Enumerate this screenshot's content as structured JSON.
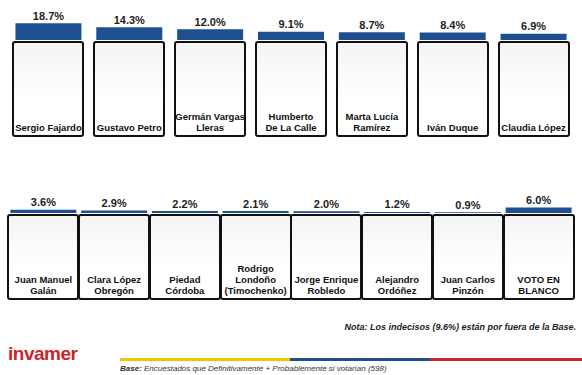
{
  "chart_data": [
    {
      "type": "bar",
      "categories": [
        "Sergio Fajardo",
        "Gustavo Petro",
        "Germán Vargas\nLleras",
        "Humberto\nDe La Calle",
        "Marta Lucía\nRamírez",
        "Iván Duque",
        "Claudia López"
      ],
      "values": [
        18.7,
        14.3,
        12.0,
        9.1,
        8.7,
        8.4,
        6.9
      ],
      "value_labels": [
        "18.7%",
        "14.3%",
        "12.0%",
        "9.1%",
        "8.7%",
        "8.4%",
        "6.9%"
      ],
      "color": "#1d4f91",
      "ylim": [
        0,
        20
      ],
      "grid": false,
      "data_labels": true,
      "tick_labels": "x"
    },
    {
      "type": "bar",
      "categories": [
        "Juan Manuel\nGalán",
        "Clara López\nObregón",
        "Piedad\nCórdoba",
        "Rodrigo\nLondoño\n(Timochenko)",
        "Jorge Enrique\nRobledo",
        "Alejandro\nOrdóñez",
        "Juan Carlos\nPinzón",
        "VOTO EN\nBLANCO"
      ],
      "values": [
        3.6,
        2.9,
        2.2,
        2.1,
        2.0,
        1.2,
        0.9,
        6.0
      ],
      "value_labels": [
        "3.6%",
        "2.9%",
        "2.2%",
        "2.1%",
        "2.0%",
        "1.2%",
        "0.9%",
        "6.0%"
      ],
      "color": "#1d4f91",
      "ylim": [
        0,
        20
      ],
      "grid": false,
      "data_labels": true,
      "tick_labels": "x"
    }
  ],
  "note": "Nota: Los indecisos (9.6%) están por fuera de la Base.",
  "logo": "invamer",
  "base_label": "Base:",
  "base_text": "Encuestados que Definitivamente + Probablemente si votarían (598)"
}
